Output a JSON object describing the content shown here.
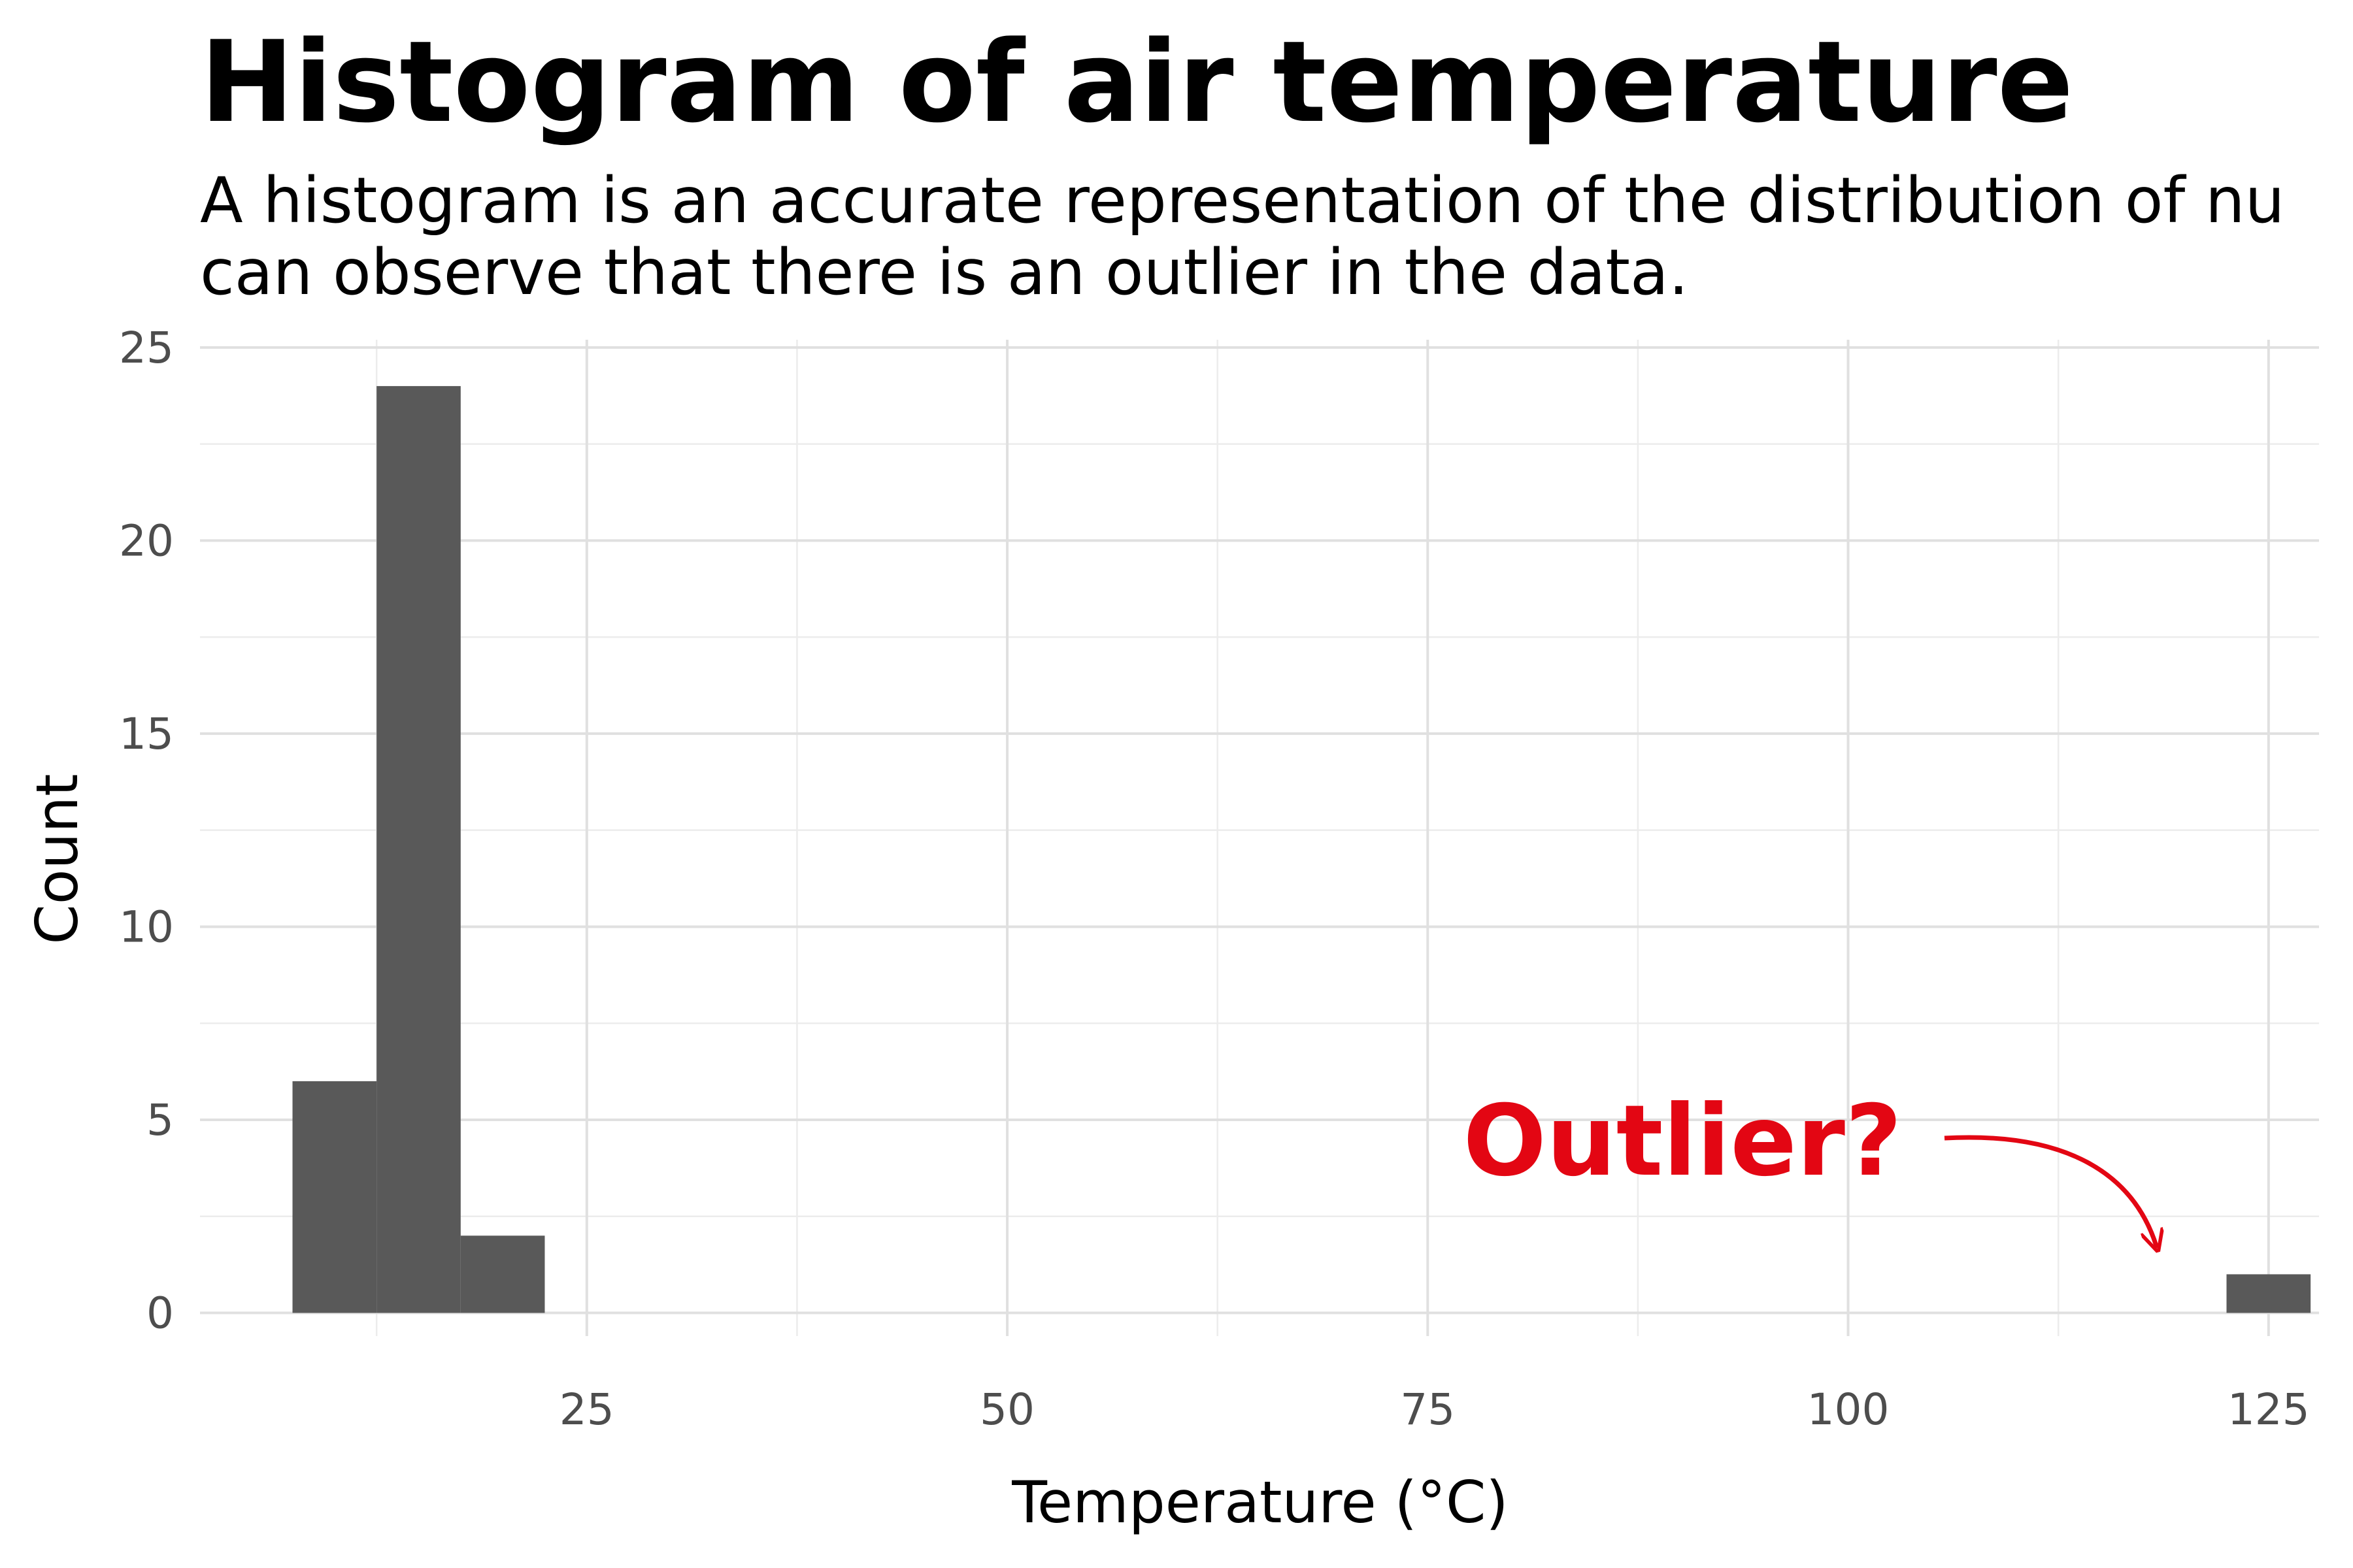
{
  "chart_data": {
    "type": "bar",
    "chart_kind": "histogram",
    "title": "Histogram of air temperature",
    "subtitle_lines": [
      "A histogram is an accurate representation of the distribution of nu",
      "can observe that there is an outlier in the data."
    ],
    "xlabel": "Temperature (°C)",
    "ylabel": "Count",
    "xlim": [
      2,
      128
    ],
    "ylim": [
      -0.6,
      25.2
    ],
    "x_ticks": [
      25,
      50,
      75,
      100,
      125
    ],
    "y_ticks": [
      0,
      5,
      10,
      15,
      20,
      25
    ],
    "grid": true,
    "bins": [
      {
        "start": 7.5,
        "end": 12.5,
        "count": 6
      },
      {
        "start": 12.5,
        "end": 17.5,
        "count": 24
      },
      {
        "start": 17.5,
        "end": 22.5,
        "count": 2
      },
      {
        "start": 122.5,
        "end": 127.5,
        "count": 1
      }
    ],
    "bar_color": "#595959",
    "annotation": {
      "text": "Outlier?",
      "color": "#e30613",
      "points_to_bin": 3
    }
  }
}
